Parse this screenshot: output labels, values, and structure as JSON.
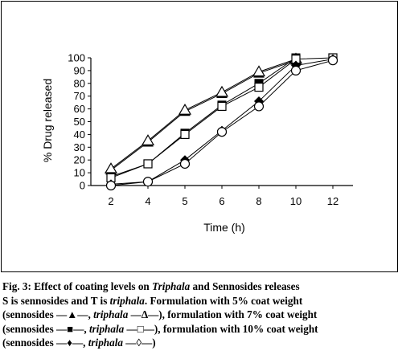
{
  "chart_data": {
    "type": "line",
    "xlabel": "Time (h)",
    "ylabel": "% Drug released",
    "categories": [
      "2",
      "4",
      "5",
      "6",
      "8",
      "10",
      "12"
    ],
    "ylim": [
      0,
      100
    ],
    "yticks": [
      0,
      10,
      20,
      30,
      40,
      50,
      60,
      70,
      80,
      90,
      100
    ],
    "grid": false,
    "legend": "none",
    "series": [
      {
        "marker": "filled-triangle",
        "values": [
          12,
          34,
          58,
          72,
          88,
          98,
          null
        ]
      },
      {
        "marker": "open-triangle",
        "values": [
          13,
          35,
          59,
          73,
          89,
          99,
          null
        ]
      },
      {
        "marker": "filled-square",
        "values": [
          7,
          17,
          41,
          63,
          80,
          100,
          null
        ]
      },
      {
        "marker": "open-square",
        "values": [
          6,
          17,
          40,
          62,
          77,
          99,
          100
        ]
      },
      {
        "marker": "filled-diamond",
        "values": [
          1,
          3,
          20,
          43,
          66,
          94,
          99
        ]
      },
      {
        "marker": "open-circle",
        "values": [
          0,
          3,
          17,
          42,
          62,
          90,
          98
        ]
      }
    ]
  },
  "caption": {
    "fig": "Fig. 3",
    "line1_text": ": Effect of coating levels on ",
    "line1_it": "Triphala",
    "line1_end": " and Sennosides releases",
    "line2_a": "S is sennosides and T is ",
    "line2_it": "triphala",
    "line2_b": ". Formulation with 5% coat weight",
    "line3_a": "(sennosides —▲—, ",
    "line3_it": "triphala",
    "line3_b": " —Δ—), formulation with 7% coat weight",
    "line4_a": "(sennosides —■—, ",
    "line4_it": "triphala",
    "line4_b": " —□—), formulation with 10% coat weight",
    "line5_a": "(sennosides —♦—, ",
    "line5_it": "triphala",
    "line5_b": " —◊—)"
  }
}
